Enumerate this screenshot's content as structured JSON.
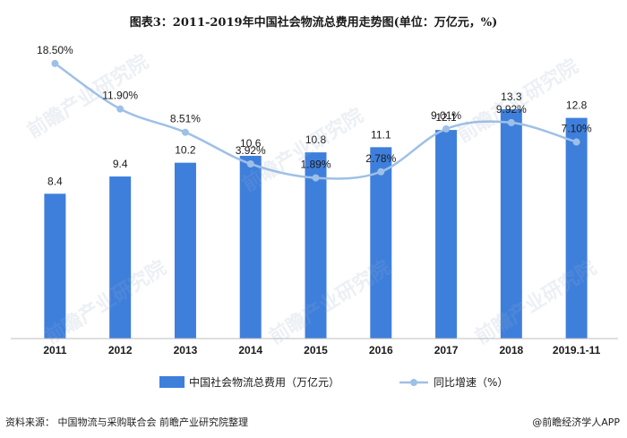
{
  "title": "图表3：2011-2019年中国社会物流总费用走势图(单位：万亿元，%)",
  "chart_data": {
    "type": "bar",
    "categories": [
      "2011",
      "2012",
      "2013",
      "2014",
      "2015",
      "2016",
      "2017",
      "2018",
      "2019.1-11"
    ],
    "series": [
      {
        "name": "中国社会物流总费用（万亿元）",
        "type": "bar",
        "values": [
          8.4,
          9.4,
          10.2,
          10.6,
          10.8,
          11.1,
          12.1,
          13.3,
          12.8
        ],
        "labels": [
          "8.4",
          "9.4",
          "10.2",
          "10.6",
          "10.8",
          "11.1",
          "12.1",
          "13.3",
          "12.8"
        ],
        "color": "#3f7fdc"
      },
      {
        "name": "同比增速（%）",
        "type": "line",
        "values": [
          18.5,
          11.9,
          8.51,
          3.92,
          1.89,
          2.78,
          9.01,
          9.92,
          7.1
        ],
        "labels": [
          "18.50%",
          "11.90%",
          "8.51%",
          "3.92%",
          "1.89%",
          "2.78%",
          "9.01%",
          "9.92%",
          "7.10%"
        ],
        "color": "#9fc0e6"
      }
    ],
    "ylim_bar": [
      0,
      16
    ],
    "ylim_line": [
      -10,
      22
    ],
    "grid": false,
    "legend_position": "bottom"
  },
  "footer": {
    "source": "资料来源：  中国物流与采购联合会 前瞻产业研究院整理",
    "brand": "@前瞻经济学人APP"
  },
  "watermark_text": "前瞻产业研究院"
}
